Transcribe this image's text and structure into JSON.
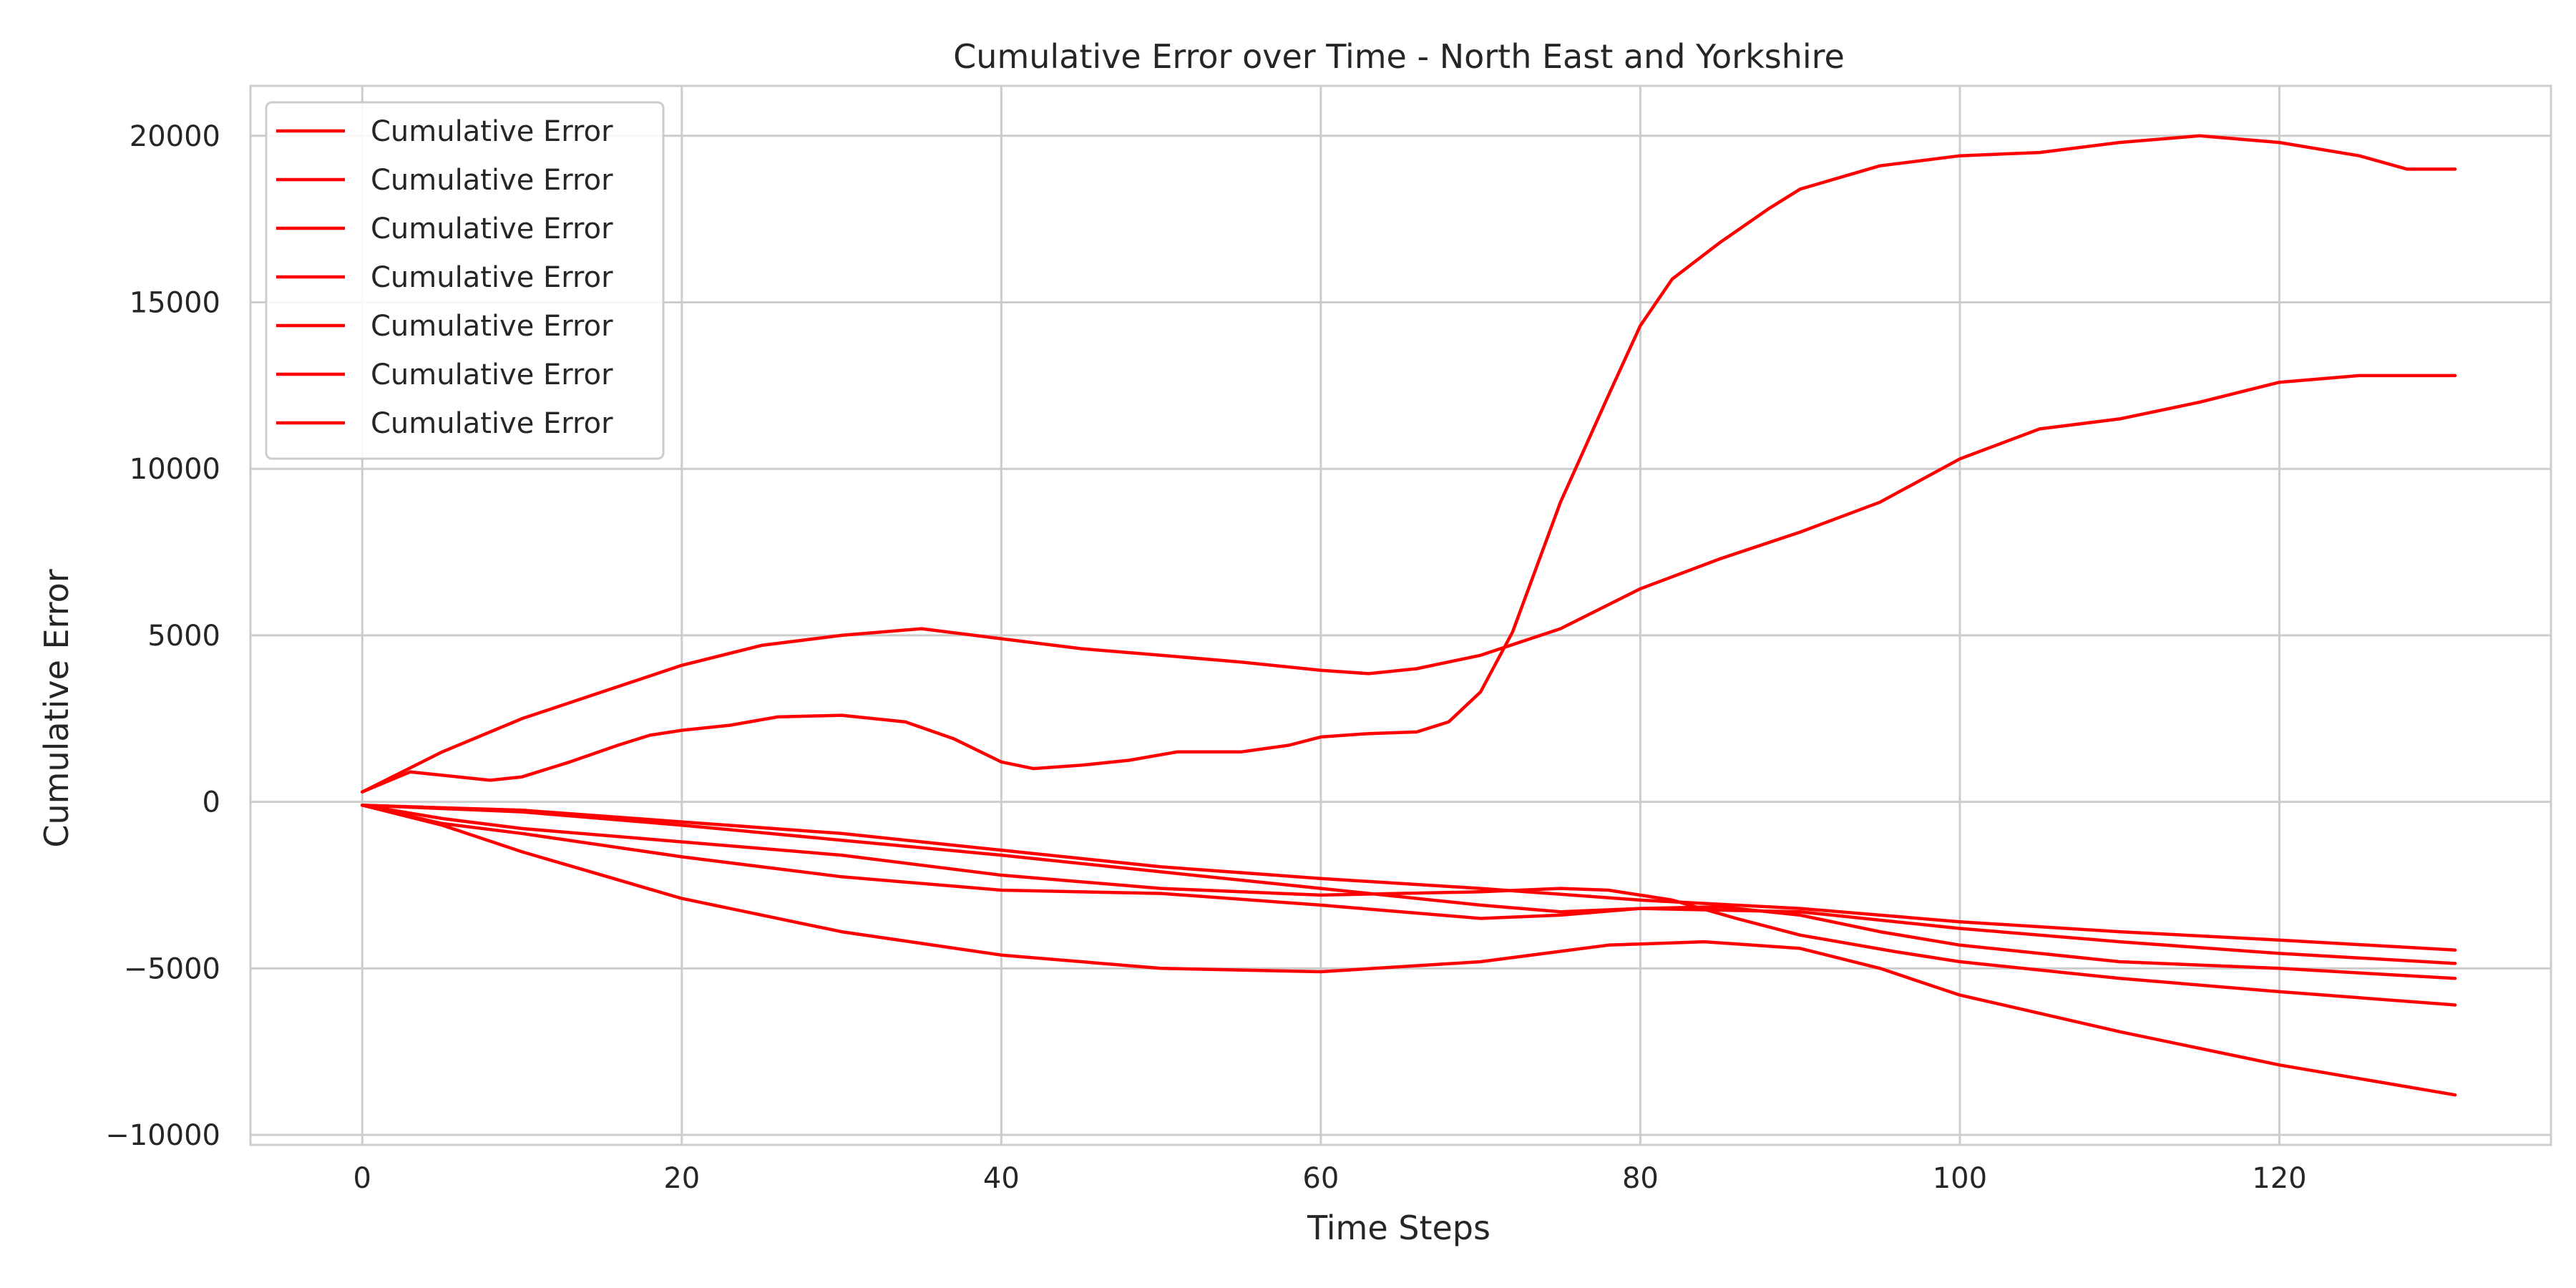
{
  "chart_data": {
    "type": "line",
    "title": "Cumulative Error over Time - North East and Yorkshire",
    "xlabel": "Time Steps",
    "ylabel": "Cumulative Error",
    "xlim": [
      -7,
      137
    ],
    "ylim": [
      -10300,
      21500
    ],
    "xticks": [
      0,
      20,
      40,
      60,
      80,
      100,
      120
    ],
    "yticks": [
      -10000,
      -5000,
      0,
      5000,
      10000,
      15000,
      20000
    ],
    "xtick_labels": [
      "0",
      "20",
      "40",
      "60",
      "80",
      "100",
      "120"
    ],
    "ytick_labels": [
      "−10000",
      "−5000",
      "0",
      "5000",
      "10000",
      "15000",
      "20000"
    ],
    "grid": true,
    "legend_position": "top-left",
    "line_color": "#ff0000",
    "series": [
      {
        "name": "Cumulative Error",
        "points": [
          [
            0,
            300
          ],
          [
            3,
            900
          ],
          [
            6,
            750
          ],
          [
            8,
            650
          ],
          [
            10,
            750
          ],
          [
            13,
            1200
          ],
          [
            16,
            1700
          ],
          [
            18,
            2000
          ],
          [
            20,
            2150
          ],
          [
            23,
            2300
          ],
          [
            26,
            2550
          ],
          [
            30,
            2600
          ],
          [
            34,
            2400
          ],
          [
            37,
            1900
          ],
          [
            40,
            1200
          ],
          [
            42,
            1000
          ],
          [
            45,
            1100
          ],
          [
            48,
            1250
          ],
          [
            51,
            1500
          ],
          [
            55,
            1500
          ],
          [
            58,
            1700
          ],
          [
            60,
            1950
          ],
          [
            63,
            2050
          ],
          [
            66,
            2100
          ],
          [
            68,
            2400
          ],
          [
            70,
            3300
          ],
          [
            72,
            5100
          ],
          [
            75,
            9000
          ],
          [
            78,
            12200
          ],
          [
            80,
            14300
          ],
          [
            82,
            15700
          ],
          [
            85,
            16800
          ],
          [
            88,
            17800
          ],
          [
            90,
            18400
          ],
          [
            95,
            19100
          ],
          [
            100,
            19400
          ],
          [
            105,
            19500
          ],
          [
            110,
            19800
          ],
          [
            115,
            20000
          ],
          [
            120,
            19800
          ],
          [
            125,
            19400
          ],
          [
            128,
            19000
          ],
          [
            131,
            19000
          ]
        ]
      },
      {
        "name": "Cumulative Error",
        "points": [
          [
            0,
            300
          ],
          [
            5,
            1500
          ],
          [
            10,
            2500
          ],
          [
            15,
            3300
          ],
          [
            20,
            4100
          ],
          [
            25,
            4700
          ],
          [
            30,
            5000
          ],
          [
            35,
            5200
          ],
          [
            40,
            4900
          ],
          [
            45,
            4600
          ],
          [
            50,
            4400
          ],
          [
            55,
            4200
          ],
          [
            60,
            3950
          ],
          [
            63,
            3850
          ],
          [
            66,
            4000
          ],
          [
            70,
            4400
          ],
          [
            75,
            5200
          ],
          [
            80,
            6400
          ],
          [
            85,
            7300
          ],
          [
            90,
            8100
          ],
          [
            95,
            9000
          ],
          [
            100,
            10300
          ],
          [
            105,
            11200
          ],
          [
            110,
            11500
          ],
          [
            115,
            12000
          ],
          [
            120,
            12600
          ],
          [
            125,
            12800
          ],
          [
            131,
            12800
          ]
        ]
      },
      {
        "name": "Cumulative Error",
        "points": [
          [
            0,
            -100
          ],
          [
            10,
            -250
          ],
          [
            20,
            -600
          ],
          [
            30,
            -950
          ],
          [
            40,
            -1450
          ],
          [
            50,
            -1950
          ],
          [
            60,
            -2300
          ],
          [
            70,
            -2600
          ],
          [
            80,
            -2950
          ],
          [
            90,
            -3200
          ],
          [
            100,
            -3600
          ],
          [
            110,
            -3900
          ],
          [
            120,
            -4150
          ],
          [
            131,
            -4450
          ]
        ]
      },
      {
        "name": "Cumulative Error",
        "points": [
          [
            0,
            -100
          ],
          [
            10,
            -300
          ],
          [
            20,
            -700
          ],
          [
            30,
            -1150
          ],
          [
            40,
            -1600
          ],
          [
            50,
            -2100
          ],
          [
            60,
            -2600
          ],
          [
            70,
            -3100
          ],
          [
            75,
            -3300
          ],
          [
            80,
            -3200
          ],
          [
            90,
            -3300
          ],
          [
            100,
            -3800
          ],
          [
            110,
            -4200
          ],
          [
            120,
            -4550
          ],
          [
            131,
            -4850
          ]
        ]
      },
      {
        "name": "Cumulative Error",
        "points": [
          [
            0,
            -100
          ],
          [
            5,
            -500
          ],
          [
            10,
            -800
          ],
          [
            20,
            -1200
          ],
          [
            30,
            -1600
          ],
          [
            40,
            -2200
          ],
          [
            50,
            -2600
          ],
          [
            60,
            -2800
          ],
          [
            70,
            -2700
          ],
          [
            75,
            -2600
          ],
          [
            78,
            -2650
          ],
          [
            82,
            -2950
          ],
          [
            86,
            -3500
          ],
          [
            90,
            -4000
          ],
          [
            96,
            -4500
          ],
          [
            100,
            -4800
          ],
          [
            110,
            -5300
          ],
          [
            120,
            -5700
          ],
          [
            131,
            -6100
          ]
        ]
      },
      {
        "name": "Cumulative Error",
        "points": [
          [
            0,
            -100
          ],
          [
            5,
            -650
          ],
          [
            10,
            -950
          ],
          [
            20,
            -1650
          ],
          [
            30,
            -2250
          ],
          [
            40,
            -2650
          ],
          [
            50,
            -2750
          ],
          [
            60,
            -3100
          ],
          [
            70,
            -3500
          ],
          [
            75,
            -3400
          ],
          [
            80,
            -3200
          ],
          [
            85,
            -3150
          ],
          [
            90,
            -3400
          ],
          [
            95,
            -3900
          ],
          [
            100,
            -4300
          ],
          [
            110,
            -4800
          ],
          [
            120,
            -5000
          ],
          [
            131,
            -5300
          ]
        ]
      },
      {
        "name": "Cumulative Error",
        "points": [
          [
            0,
            -100
          ],
          [
            5,
            -700
          ],
          [
            10,
            -1500
          ],
          [
            20,
            -2900
          ],
          [
            30,
            -3900
          ],
          [
            40,
            -4600
          ],
          [
            50,
            -5000
          ],
          [
            60,
            -5100
          ],
          [
            70,
            -4800
          ],
          [
            78,
            -4300
          ],
          [
            84,
            -4200
          ],
          [
            90,
            -4400
          ],
          [
            95,
            -5000
          ],
          [
            100,
            -5800
          ],
          [
            110,
            -6900
          ],
          [
            120,
            -7900
          ],
          [
            131,
            -8800
          ]
        ]
      }
    ]
  }
}
